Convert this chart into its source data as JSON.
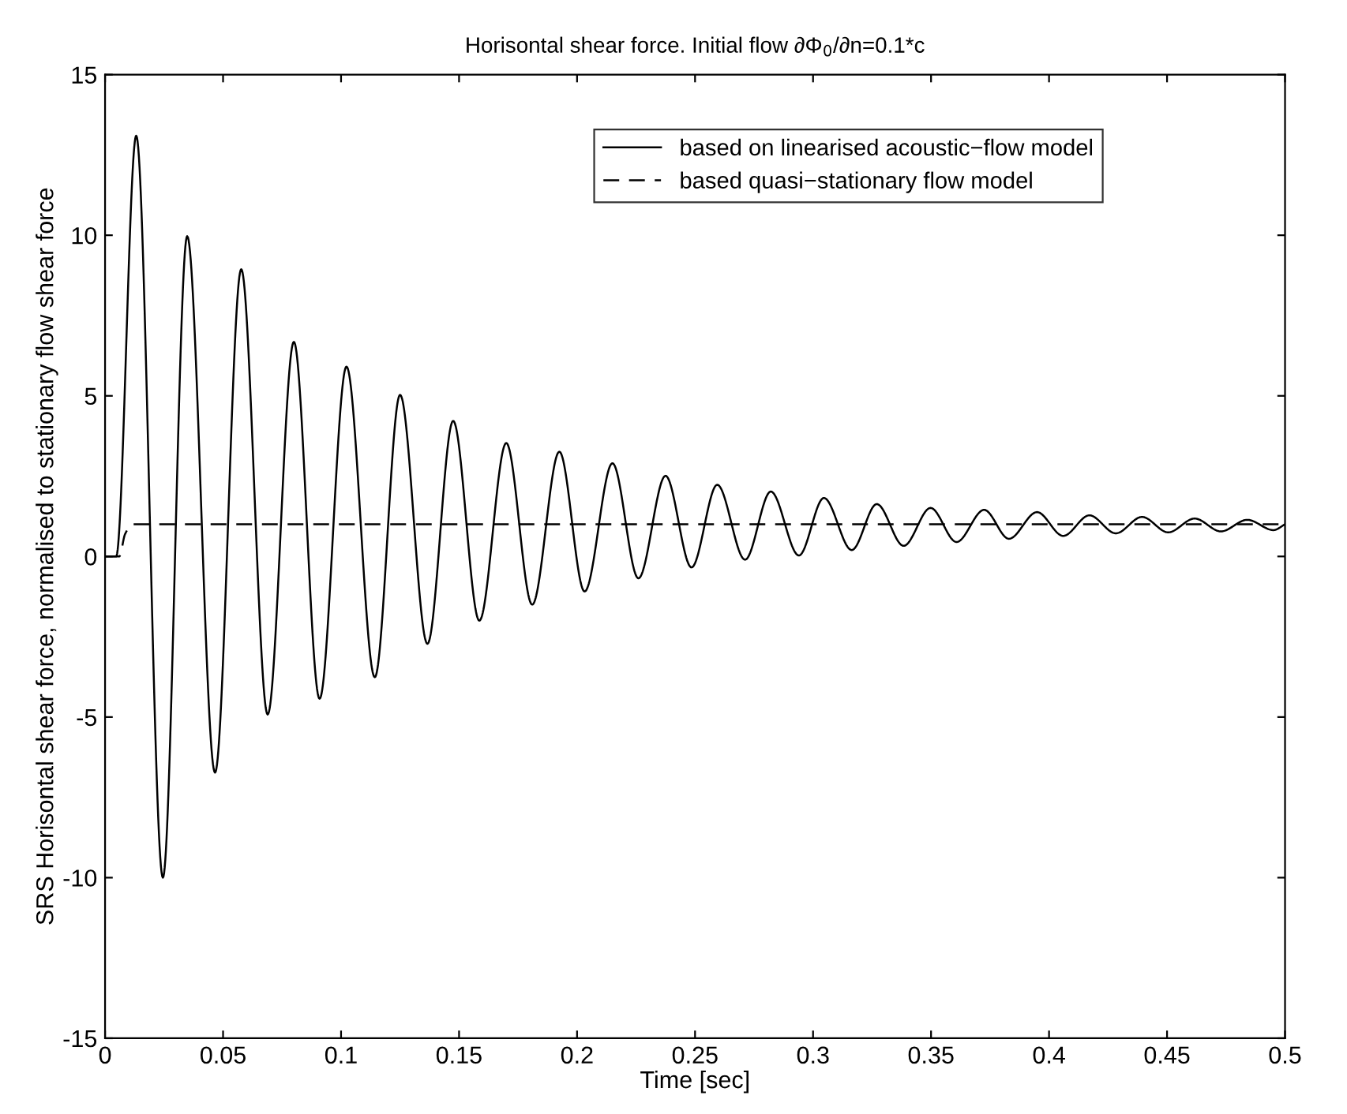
{
  "chart_data": {
    "type": "line",
    "title": "Horisontal shear force. Initial flow ∂Φ$_{0}$/∂n=0.1*c",
    "xlabel": "Time [sec]",
    "ylabel": "SRS Horisontal shear force, normalised to stationary flow shear force",
    "xlim": [
      0,
      0.5
    ],
    "ylim": [
      -15,
      15
    ],
    "xticks": [
      0,
      0.05,
      0.1,
      0.15,
      0.2,
      0.25,
      0.3,
      0.35,
      0.4,
      0.45,
      0.5
    ],
    "yticks": [
      -15,
      -10,
      -5,
      0,
      5,
      10,
      15
    ],
    "grid": false,
    "legend": "top",
    "marker": "none",
    "series": [
      {
        "name": "based on linearised acoustic−flow model",
        "color": "#000000",
        "line_style": "solid",
        "x": [
          0,
          0.0047,
          0.0132,
          0.0245,
          0.0348,
          0.0466,
          0.0577,
          0.0689,
          0.08,
          0.0909,
          0.1023,
          0.1143,
          0.125,
          0.1366,
          0.1475,
          0.1586,
          0.17,
          0.181,
          0.1925,
          0.2032,
          0.215,
          0.226,
          0.2375,
          0.2485,
          0.2594,
          0.2712,
          0.2821,
          0.294,
          0.3046,
          0.3164,
          0.327,
          0.3384,
          0.3498,
          0.3608,
          0.3725,
          0.383,
          0.3949,
          0.406,
          0.4171,
          0.4283,
          0.4394,
          0.4505,
          0.4617,
          0.4728,
          0.484,
          0.4951,
          0.5
        ],
        "values": [
          0,
          0,
          13.1,
          -10.0,
          9.97,
          -6.73,
          8.94,
          -4.92,
          6.68,
          -4.43,
          5.91,
          -3.76,
          5.03,
          -2.72,
          4.22,
          -2.0,
          3.53,
          -1.5,
          3.26,
          -1.09,
          2.9,
          -0.68,
          2.51,
          -0.34,
          2.23,
          -0.1,
          2.02,
          0.03,
          1.82,
          0.2,
          1.63,
          0.33,
          1.51,
          0.45,
          1.45,
          0.55,
          1.38,
          0.64,
          1.28,
          0.72,
          1.23,
          0.75,
          1.18,
          0.78,
          1.14,
          0.82,
          1.0
        ]
      },
      {
        "name": "based quasi−stationary flow model",
        "color": "#000000",
        "line_style": "dashed",
        "x": [
          0,
          0.006,
          0.0085,
          0.0116,
          0.5
        ],
        "values": [
          0,
          0,
          0.7,
          1.0,
          1.0
        ]
      }
    ]
  }
}
